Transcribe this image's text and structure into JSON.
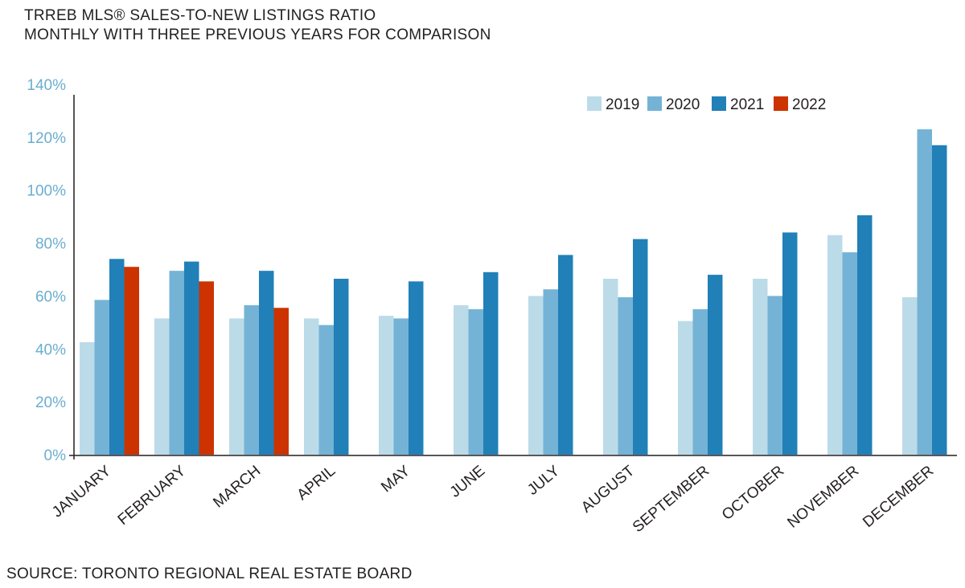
{
  "chart_data": {
    "type": "bar",
    "title": "TRREB MLS® SALES-TO-NEW LISTINGS RATIO",
    "subtitle": "MONTHLY WITH THREE PREVIOUS YEARS FOR COMPARISON",
    "source": "SOURCE: TORONTO REGIONAL REAL ESTATE BOARD",
    "categories": [
      "JANUARY",
      "FEBRUARY",
      "MARCH",
      "APRIL",
      "MAY",
      "JUNE",
      "JULY",
      "AUGUST",
      "SEPTEMBER",
      "OCTOBER",
      "NOVEMBER",
      "DECEMBER"
    ],
    "series": [
      {
        "name": "2019",
        "color": "#bcdbe9",
        "values": [
          42.5,
          51.5,
          51.5,
          51.5,
          52.5,
          56.5,
          60,
          66.5,
          50.5,
          66.5,
          83,
          59.5
        ]
      },
      {
        "name": "2020",
        "color": "#74b3d6",
        "values": [
          58.5,
          69.5,
          56.5,
          49,
          51.5,
          55,
          62.5,
          59.5,
          55,
          60,
          76.5,
          123
        ]
      },
      {
        "name": "2021",
        "color": "#2180b8",
        "values": [
          74,
          73,
          69.5,
          66.5,
          65.5,
          69,
          75.5,
          81.5,
          68,
          84,
          90.5,
          117
        ]
      },
      {
        "name": "2022",
        "color": "#cc3300",
        "values": [
          71,
          65.5,
          55.5,
          null,
          null,
          null,
          null,
          null,
          null,
          null,
          null,
          null
        ]
      }
    ],
    "yticks": [
      "0%",
      "20%",
      "40%",
      "60%",
      "80%",
      "100%",
      "120%",
      "140%"
    ],
    "ylim": [
      0,
      140
    ],
    "legend_position": "top-right",
    "grid": false
  }
}
